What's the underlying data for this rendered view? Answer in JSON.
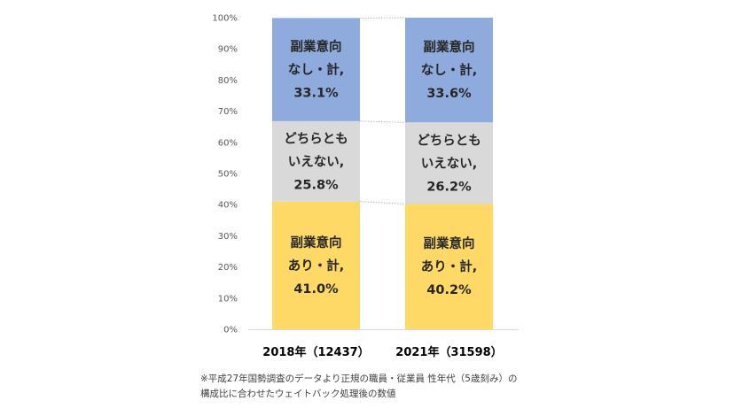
{
  "chart_data": {
    "type": "bar",
    "stacked": true,
    "percent": true,
    "categories": [
      "2018年（12437）",
      "2021年（31598）"
    ],
    "series": [
      {
        "key": "ari",
        "color": "#ffd966",
        "values": [
          41.0,
          40.2
        ],
        "labels": [
          [
            "副業意向",
            "あり・計,",
            "41.0%"
          ],
          [
            "副業意向",
            "あり・計,",
            "40.2%"
          ]
        ]
      },
      {
        "key": "dochira",
        "color": "#d9d9d9",
        "values": [
          25.8,
          26.2
        ],
        "labels": [
          [
            "どちらとも",
            "いえない,",
            "25.8%"
          ],
          [
            "どちらとも",
            "いえない,",
            "26.2%"
          ]
        ]
      },
      {
        "key": "nashi",
        "color": "#8faadc",
        "values": [
          33.1,
          33.6
        ],
        "labels": [
          [
            "副業意向",
            "なし・計,",
            "33.1%"
          ],
          [
            "副業意向",
            "なし・計,",
            "33.6%"
          ]
        ]
      }
    ],
    "ylim": [
      0,
      100
    ],
    "yticks": [
      "0%",
      "10%",
      "20%",
      "30%",
      "40%",
      "50%",
      "60%",
      "70%",
      "80%",
      "90%",
      "100%"
    ],
    "series_lines": true,
    "grid": false,
    "legend": false
  },
  "footnote": {
    "line1": "※平成27年国勢調査のデータより正規の職員・従業員 性年代（5歳刻み）の",
    "line2": "構成比に合わせたウェイトバック処理後の数値"
  }
}
